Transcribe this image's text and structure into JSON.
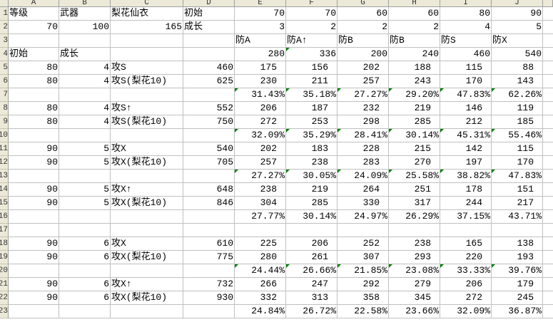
{
  "columns": [
    "A",
    "B",
    "C",
    "D",
    "E",
    "F",
    "G",
    "H",
    "I",
    "J"
  ],
  "row_numbers": [
    "1",
    "2",
    "3",
    "4",
    "5",
    "6",
    "7",
    "8",
    "9",
    "10",
    "11",
    "12",
    "13",
    "14",
    "15",
    "16",
    "17",
    "18",
    "19",
    "20",
    "21",
    "22",
    "23"
  ],
  "rows": [
    [
      "等级",
      "武器",
      "梨花仙衣",
      "初始",
      "70",
      "70",
      "60",
      "60",
      "80",
      "90"
    ],
    [
      "70",
      "100",
      "165",
      "成长",
      "3",
      "2",
      "2",
      "2",
      "4",
      "5"
    ],
    [
      "",
      "",
      "",
      "",
      "防A",
      "防A↑",
      "防B",
      "防B",
      "防S",
      "防X"
    ],
    [
      "初始",
      "成长",
      "",
      "",
      "280",
      "336",
      "200",
      "240",
      "460",
      "540"
    ],
    [
      "80",
      "4",
      "攻S",
      "460",
      "175",
      "156",
      "202",
      "188",
      "115",
      "88"
    ],
    [
      "80",
      "4",
      "攻S(梨花10)",
      "625",
      "230",
      "211",
      "257",
      "243",
      "170",
      "143"
    ],
    [
      "",
      "",
      "",
      "",
      "31.43%",
      "35.18%",
      "27.27%",
      "29.20%",
      "47.83%",
      "62.26%"
    ],
    [
      "80",
      "4",
      "攻S↑",
      "552",
      "206",
      "187",
      "232",
      "219",
      "146",
      "119"
    ],
    [
      "80",
      "4",
      "攻S(梨花10)",
      "750",
      "272",
      "253",
      "298",
      "285",
      "212",
      "185"
    ],
    [
      "",
      "",
      "",
      "",
      "32.09%",
      "35.29%",
      "28.41%",
      "30.14%",
      "45.31%",
      "55.46%"
    ],
    [
      "90",
      "5",
      "攻X",
      "540",
      "202",
      "183",
      "228",
      "215",
      "142",
      "115"
    ],
    [
      "90",
      "5",
      "攻X(梨花10)",
      "705",
      "257",
      "238",
      "283",
      "270",
      "197",
      "170"
    ],
    [
      "",
      "",
      "",
      "",
      "27.27%",
      "30.05%",
      "24.09%",
      "25.58%",
      "38.82%",
      "47.83%"
    ],
    [
      "90",
      "5",
      "攻X↑",
      "648",
      "238",
      "219",
      "264",
      "251",
      "178",
      "151"
    ],
    [
      "90",
      "5",
      "攻X(梨花10)",
      "846",
      "304",
      "285",
      "330",
      "317",
      "244",
      "217"
    ],
    [
      "",
      "",
      "",
      "",
      "27.77%",
      "30.14%",
      "24.97%",
      "26.29%",
      "37.15%",
      "43.71%"
    ],
    [
      "",
      "",
      "",
      "",
      "",
      "",
      "",
      "",
      "",
      ""
    ],
    [
      "90",
      "6",
      "攻X",
      "610",
      "225",
      "206",
      "252",
      "238",
      "165",
      "138"
    ],
    [
      "90",
      "6",
      "攻X(梨花10)",
      "775",
      "280",
      "261",
      "307",
      "293",
      "220",
      "193"
    ],
    [
      "",
      "",
      "",
      "",
      "24.44%",
      "26.66%",
      "21.85%",
      "23.08%",
      "33.33%",
      "39.76%"
    ],
    [
      "90",
      "6",
      "攻X↑",
      "732",
      "266",
      "247",
      "292",
      "279",
      "206",
      "179"
    ],
    [
      "90",
      "6",
      "攻X(梨花10)",
      "930",
      "332",
      "313",
      "358",
      "345",
      "272",
      "245"
    ],
    [
      "",
      "",
      "",
      "",
      "24.84%",
      "26.72%",
      "22.58%",
      "23.66%",
      "32.09%",
      "36.87%"
    ]
  ],
  "error_indicator_color": "#008000",
  "error_indicator_cells": [
    "F4",
    "E7",
    "F7",
    "G7",
    "H7",
    "I7",
    "J7",
    "E10",
    "F10",
    "G10",
    "H10",
    "I10",
    "J10",
    "E13",
    "F13",
    "G13",
    "H13",
    "I13",
    "J13",
    "E20",
    "F20",
    "G20",
    "H20",
    "I20",
    "J20"
  ]
}
